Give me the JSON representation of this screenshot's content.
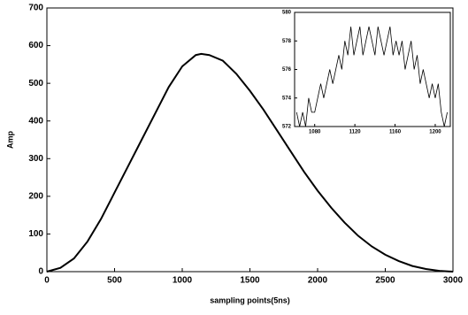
{
  "chart_data": [
    {
      "type": "line",
      "xlabel": "sampling points(5ns)",
      "ylabel": "Amp",
      "color": "#000000",
      "x": [
        0,
        100,
        200,
        300,
        400,
        500,
        600,
        700,
        800,
        900,
        1000,
        1100,
        1140,
        1200,
        1300,
        1400,
        1500,
        1600,
        1700,
        1800,
        1900,
        2000,
        2100,
        2200,
        2300,
        2400,
        2500,
        2600,
        2700,
        2800,
        2900,
        3000
      ],
      "values": [
        0,
        10,
        35,
        80,
        140,
        210,
        280,
        350,
        420,
        490,
        545,
        575,
        578,
        575,
        560,
        525,
        480,
        430,
        375,
        320,
        265,
        215,
        170,
        130,
        95,
        67,
        45,
        28,
        15,
        7,
        2,
        0
      ],
      "xlim": [
        0,
        3000
      ],
      "ylim": [
        0,
        700
      ],
      "xticks": [
        0,
        500,
        1000,
        1500,
        2000,
        2500,
        3000
      ],
      "yticks": [
        0,
        100,
        200,
        300,
        400,
        500,
        600,
        700
      ]
    },
    {
      "type": "line",
      "color": "#000000",
      "x": [
        1062,
        1065,
        1068,
        1071,
        1074,
        1077,
        1080,
        1083,
        1086,
        1089,
        1092,
        1095,
        1098,
        1101,
        1104,
        1107,
        1110,
        1113,
        1116,
        1119,
        1122,
        1125,
        1128,
        1131,
        1134,
        1137,
        1140,
        1143,
        1146,
        1149,
        1152,
        1155,
        1158,
        1161,
        1164,
        1167,
        1170,
        1173,
        1176,
        1179,
        1182,
        1185,
        1188,
        1191,
        1194,
        1197,
        1200,
        1203,
        1206,
        1209,
        1212
      ],
      "values": [
        573,
        572,
        573,
        572,
        574,
        573,
        573,
        574,
        575,
        574,
        575,
        576,
        575,
        576,
        577,
        576,
        578,
        577,
        579,
        577,
        578,
        579,
        577,
        578,
        579,
        578,
        577,
        579,
        578,
        577,
        578,
        579,
        577,
        578,
        577,
        578,
        576,
        577,
        578,
        576,
        577,
        575,
        576,
        575,
        574,
        575,
        574,
        575,
        573,
        572,
        573
      ],
      "xlim": [
        1060,
        1215
      ],
      "ylim": [
        572,
        580
      ],
      "xticks": [
        1080,
        1120,
        1160,
        1200
      ],
      "yticks": [
        572,
        574,
        576,
        578,
        580
      ]
    }
  ]
}
